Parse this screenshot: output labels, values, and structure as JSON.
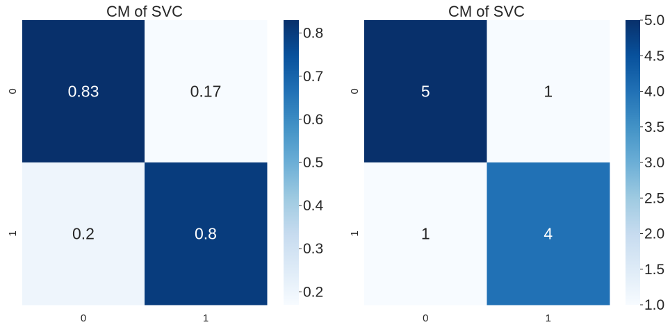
{
  "colormap": {
    "name": "Blues",
    "stops": [
      "#f7fbff",
      "#deebf7",
      "#c6dbef",
      "#9ecae1",
      "#6baed6",
      "#4292c6",
      "#2171b5",
      "#08519c",
      "#08306b"
    ]
  },
  "chart_data": [
    {
      "type": "heatmap",
      "title": "CM of SVC",
      "x_categories": [
        "0",
        "1"
      ],
      "y_categories": [
        "0",
        "1"
      ],
      "values": [
        [
          0.83,
          0.17
        ],
        [
          0.2,
          0.8
        ]
      ],
      "annotations": [
        [
          "0.83",
          "0.17"
        ],
        [
          "0.2",
          "0.8"
        ]
      ],
      "vmin": 0.17,
      "vmax": 0.83,
      "colorbar_ticks": [
        0.2,
        0.3,
        0.4,
        0.5,
        0.6,
        0.7,
        0.8
      ],
      "colorbar_tick_labels": [
        "0.2",
        "0.3",
        "0.4",
        "0.5",
        "0.6",
        "0.7",
        "0.8"
      ],
      "grid": false
    },
    {
      "type": "heatmap",
      "title": "CM of SVC",
      "x_categories": [
        "0",
        "1"
      ],
      "y_categories": [
        "0",
        "1"
      ],
      "values": [
        [
          5,
          1
        ],
        [
          1,
          4
        ]
      ],
      "annotations": [
        [
          "5",
          "1"
        ],
        [
          "1",
          "4"
        ]
      ],
      "vmin": 1,
      "vmax": 5,
      "colorbar_ticks": [
        1.0,
        1.5,
        2.0,
        2.5,
        3.0,
        3.5,
        4.0,
        4.5,
        5.0
      ],
      "colorbar_tick_labels": [
        "1.0",
        "1.5",
        "2.0",
        "2.5",
        "3.0",
        "3.5",
        "4.0",
        "4.5",
        "5.0"
      ],
      "grid": false
    }
  ]
}
